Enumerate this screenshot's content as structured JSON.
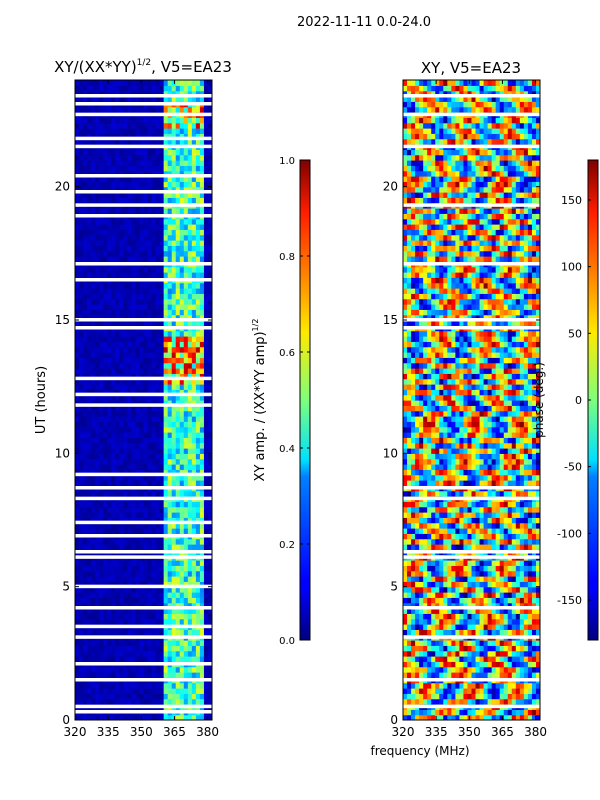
{
  "figure_title": "2022-11-11 0.0-24.0",
  "chart_data": [
    {
      "type": "heatmap",
      "title": "XY/(XX*YY)^{1/2}, V5=EA23",
      "title_main": "XY/(XX*YY)",
      "title_exp": "1/2",
      "title_tail": ", V5=EA23",
      "xlabel": "",
      "ylabel": "UT (hours)",
      "xlim": [
        320,
        382
      ],
      "ylim": [
        0,
        24
      ],
      "xticks": [
        320,
        335,
        350,
        365,
        380
      ],
      "yticks": [
        0,
        5,
        10,
        15,
        20
      ],
      "colormap": "jet",
      "value_range": [
        0,
        1
      ],
      "active_band_mhz": [
        361,
        378
      ],
      "gap_hours": [
        0.3,
        0.5,
        1.5,
        2.1,
        3.1,
        3.5,
        4.2,
        5.0,
        6.1,
        6.3,
        6.9,
        7.4,
        8.3,
        8.7,
        9.2,
        11.8,
        12.2,
        12.8,
        14.7,
        15.0,
        16.5,
        17.1,
        18.9,
        19.3,
        19.8,
        20.4,
        21.5,
        21.8,
        22.7,
        23.1,
        23.4
      ],
      "colorbar": {
        "label": "XY amp. / (XX*YY amp)^{1/2}",
        "label_main": "XY amp. / (XX*YY amp)",
        "label_exp": "1/2",
        "range": [
          0.0,
          1.0
        ],
        "ticks": [
          "0.0",
          "0.2",
          "0.4",
          "0.6",
          "0.8",
          "1.0"
        ]
      }
    },
    {
      "type": "heatmap",
      "title": "XY, V5=EA23",
      "xlabel": "frequency (MHz)",
      "ylabel": "",
      "xlim": [
        320,
        382
      ],
      "ylim": [
        0,
        24
      ],
      "xticks": [
        320,
        335,
        350,
        365,
        380
      ],
      "yticks": [
        0,
        5,
        10,
        15,
        20
      ],
      "colormap": "jet",
      "value_range": [
        -180,
        180
      ],
      "gap_hours": [
        0.5,
        1.5,
        3.1,
        4.2,
        6.1,
        6.3,
        8.3,
        8.7,
        14.7,
        15.0,
        17.1,
        19.3,
        21.5,
        22.7,
        23.4
      ],
      "colorbar": {
        "label": "phase (deg.)",
        "range": [
          -180,
          180
        ],
        "ticks": [
          "-150",
          "-100",
          "-50",
          "0",
          "50",
          "100",
          "150"
        ],
        "tick_values": [
          -150,
          -100,
          -50,
          0,
          50,
          100,
          150
        ]
      }
    }
  ]
}
